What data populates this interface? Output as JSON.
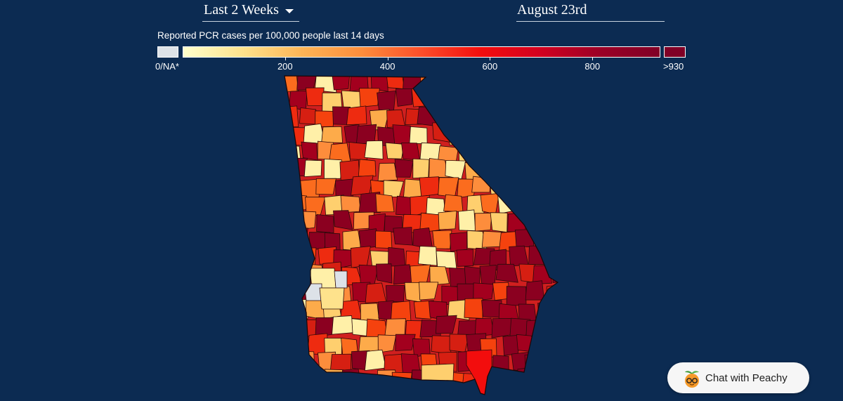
{
  "controls": {
    "period_label": "Last 2 Weeks",
    "date_value": "August 23rd"
  },
  "legend": {
    "title": "Reported PCR cases per 100,000 people last 14 days",
    "na_label": "0/NA*",
    "max_label": ">930",
    "ticks": [
      {
        "value": 200,
        "label": "200"
      },
      {
        "value": 400,
        "label": "400"
      },
      {
        "value": 600,
        "label": "600"
      },
      {
        "value": 800,
        "label": "800"
      }
    ],
    "scale_max": 930,
    "colors": {
      "na": "#dde2e8",
      "stops": [
        "#ffffcc",
        "#fee28c",
        "#fdb456",
        "#fd8d3c",
        "#fc4e2a",
        "#f30d0d",
        "#d20020",
        "#9b0026",
        "#800026"
      ],
      "max": "#800026"
    }
  },
  "map": {
    "region": "Georgia counties",
    "state_fill": "#d01f1f",
    "border_color": "#2a0a0a"
  },
  "chat": {
    "label": "Chat with Peachy",
    "icon": "peach-icon"
  }
}
